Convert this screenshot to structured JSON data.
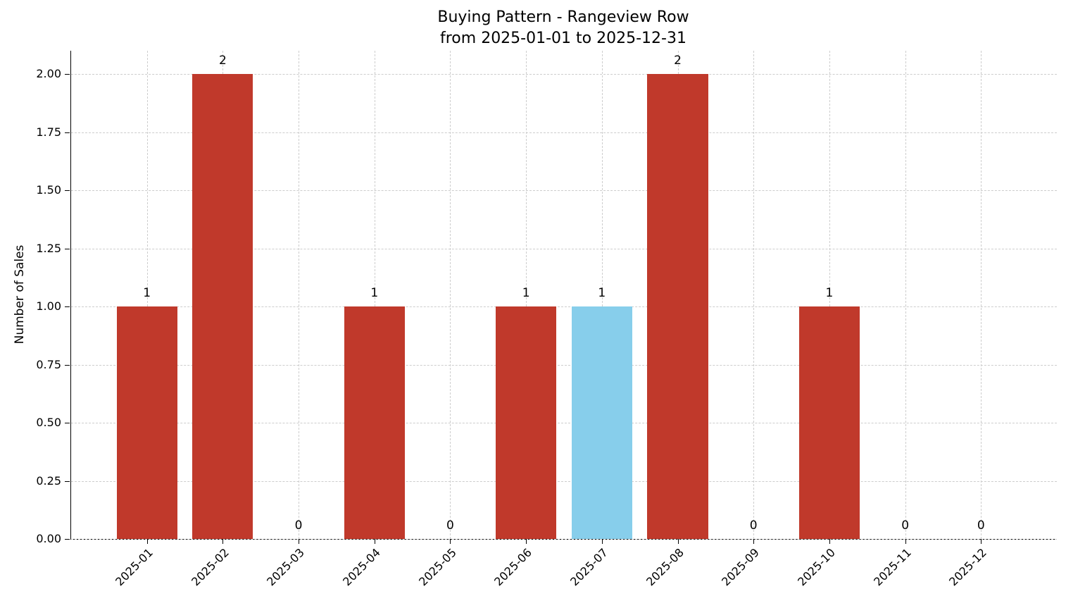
{
  "chart_data": {
    "type": "bar",
    "title": "Buying Pattern - Rangeview Row",
    "subtitle": "from 2025-01-01 to 2025-12-31",
    "xlabel": "",
    "ylabel": "Number of Sales",
    "categories": [
      "2025-01",
      "2025-02",
      "2025-03",
      "2025-04",
      "2025-05",
      "2025-06",
      "2025-07",
      "2025-08",
      "2025-09",
      "2025-10",
      "2025-11",
      "2025-12"
    ],
    "values": [
      1,
      2,
      0,
      1,
      0,
      1,
      1,
      2,
      0,
      1,
      0,
      0
    ],
    "bar_labels": [
      "1",
      "2",
      "0",
      "1",
      "0",
      "1",
      "1",
      "2",
      "0",
      "1",
      "0",
      "0"
    ],
    "yticks": [
      0,
      0.25,
      0.5,
      0.75,
      1,
      1.25,
      1.5,
      1.75,
      2
    ],
    "ytick_labels": [
      "0.00",
      "0.25",
      "0.50",
      "0.75",
      "1.00",
      "1.25",
      "1.50",
      "1.75",
      "2.00"
    ],
    "ylim": [
      0,
      2.1
    ],
    "bar_color": "#c0392b",
    "highlight_color": "#87ceeb",
    "highlight_index": 6,
    "grid": true,
    "grid_style": "dashed",
    "legend_position": "none"
  }
}
